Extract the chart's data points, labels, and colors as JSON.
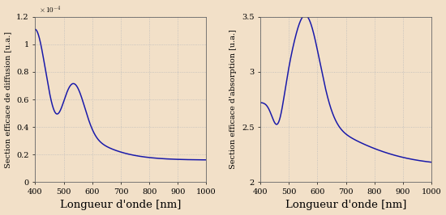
{
  "background_color": "#f2e0c8",
  "line_color": "#1a1aaa",
  "line_width": 1.1,
  "subplot1": {
    "ylabel": "Section efficace de diffusion [u.a.]",
    "xlabel": "Longueur d'onde [nm]",
    "xlim": [
      400,
      1000
    ],
    "ylim": [
      0,
      0.00012
    ],
    "yticks": [
      0,
      2e-05,
      4e-05,
      6e-05,
      8e-05,
      0.0001,
      0.00012
    ],
    "ytick_labels": [
      "0",
      "0.2",
      "0.4",
      "0.6",
      "0.8",
      "1",
      "1.2"
    ],
    "xticks": [
      400,
      500,
      600,
      700,
      800,
      900,
      1000
    ]
  },
  "subplot2": {
    "ylabel": "Section efficace d'absorption [u.a.]",
    "xlabel": "Longueur d'onde [nm]",
    "xlim": [
      400,
      1000
    ],
    "ylim": [
      2.0,
      3.5
    ],
    "yticks": [
      2.0,
      2.5,
      3.0,
      3.5
    ],
    "ytick_labels": [
      "2",
      "2.5",
      "3",
      "3.5"
    ],
    "xticks": [
      400,
      500,
      600,
      700,
      800,
      900,
      1000
    ]
  },
  "ylabel_fontsize": 7.0,
  "xlabel_fontsize": 9.5,
  "tick_fontsize": 7.0,
  "grid_color": "#bbbbbb",
  "grid_style": ":"
}
